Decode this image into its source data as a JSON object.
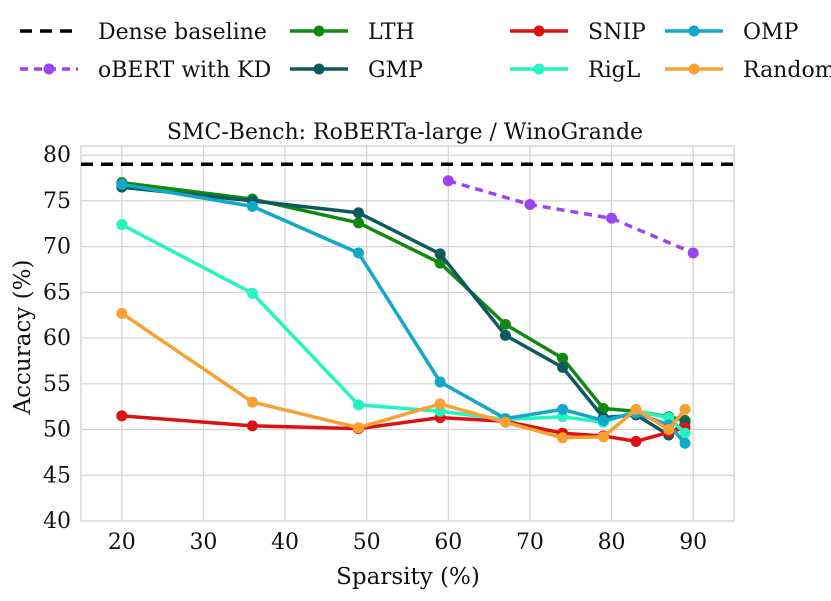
{
  "chart_data": {
    "type": "line",
    "title": "SMC-Bench: RoBERTa-large / WinoGrande",
    "xlabel": "Sparsity (%)",
    "ylabel": "Accuracy (%)",
    "xlim": [
      15,
      95
    ],
    "ylim": [
      40,
      81
    ],
    "xticks": [
      20,
      30,
      40,
      50,
      60,
      70,
      80,
      90
    ],
    "yticks": [
      40,
      45,
      50,
      55,
      60,
      65,
      70,
      75,
      80
    ],
    "grid": true,
    "legend_position": "top",
    "series": [
      {
        "name": "Dense baseline",
        "color": "#000000",
        "dashed": true,
        "markers": false,
        "x": [
          15,
          95
        ],
        "y": [
          79,
          79
        ]
      },
      {
        "name": "oBERT with KD",
        "color": "#9b45f0",
        "dashed": true,
        "markers": true,
        "x": [
          60,
          70,
          80,
          90
        ],
        "y": [
          77.2,
          74.6,
          73.1,
          69.3
        ]
      },
      {
        "name": "LTH",
        "color": "#118811",
        "dashed": false,
        "markers": true,
        "x": [
          20,
          36,
          49,
          59,
          67,
          74,
          79,
          83,
          87,
          89
        ],
        "y": [
          77.0,
          75.2,
          72.6,
          68.2,
          61.5,
          57.8,
          52.3,
          52.0,
          51.4,
          51.0
        ]
      },
      {
        "name": "GMP",
        "color": "#0d5a5e",
        "dashed": false,
        "markers": true,
        "x": [
          20,
          36,
          49,
          59,
          67,
          74,
          79,
          83,
          87,
          89
        ],
        "y": [
          76.5,
          75.0,
          73.7,
          69.2,
          60.3,
          56.8,
          51.3,
          51.6,
          49.4,
          50.8
        ]
      },
      {
        "name": "SNIP",
        "color": "#dd1111",
        "dashed": false,
        "markers": true,
        "x": [
          20,
          36,
          49,
          59,
          67,
          74,
          79,
          83,
          87,
          89
        ],
        "y": [
          51.5,
          50.4,
          50.1,
          51.3,
          50.9,
          49.6,
          49.3,
          48.7,
          49.7,
          50.2
        ]
      },
      {
        "name": "RigL",
        "color": "#22f5c0",
        "dashed": false,
        "markers": true,
        "x": [
          20,
          36,
          49,
          59,
          67,
          74,
          79,
          83,
          87,
          89
        ],
        "y": [
          72.4,
          64.9,
          52.7,
          52.0,
          51.1,
          51.4,
          50.8,
          52.0,
          51.3,
          49.6
        ]
      },
      {
        "name": "OMP",
        "color": "#13a7c8",
        "dashed": false,
        "markers": true,
        "x": [
          20,
          36,
          49,
          59,
          67,
          74,
          79,
          83,
          87,
          89
        ],
        "y": [
          76.8,
          74.4,
          69.3,
          55.2,
          51.2,
          52.2,
          51.0,
          51.8,
          50.5,
          48.5
        ]
      },
      {
        "name": "Random",
        "color": "#f7a133",
        "dashed": false,
        "markers": true,
        "x": [
          20,
          36,
          49,
          59,
          67,
          74,
          79,
          83,
          87,
          89
        ],
        "y": [
          62.7,
          53.0,
          50.2,
          52.8,
          50.8,
          49.1,
          49.2,
          52.2,
          50.0,
          52.2
        ]
      }
    ]
  }
}
